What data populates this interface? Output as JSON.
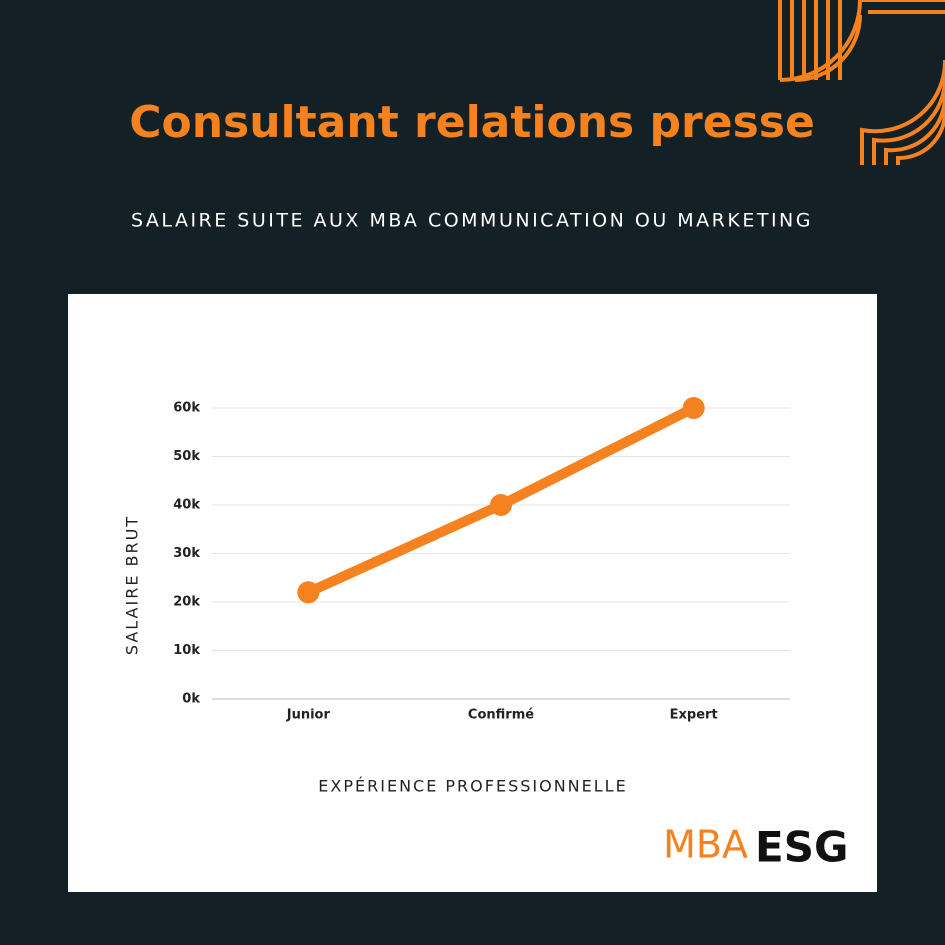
{
  "chart_data": {
    "type": "line",
    "title": "Consultant relations presse",
    "subtitle": "SALAIRE SUITE AUX MBA COMMUNICATION OU MARKETING",
    "y_label": "SALAIRE BRUT",
    "x_label": "EXPÉRIENCE PROFESSIONNELLE",
    "categories": [
      "Junior",
      "Confirmé",
      "Expert"
    ],
    "series": [
      {
        "color": "#f5821f",
        "values": [
          22000,
          40000,
          60000
        ]
      }
    ],
    "ylim": [
      0,
      60000
    ],
    "yticks": [
      {
        "value": 0,
        "label": "0k"
      },
      {
        "value": 10000,
        "label": "10k"
      },
      {
        "value": 20000,
        "label": "20k"
      },
      {
        "value": 30000,
        "label": "30k"
      },
      {
        "value": 40000,
        "label": "40k"
      },
      {
        "value": 50000,
        "label": "50k"
      },
      {
        "value": 60000,
        "label": "60k"
      }
    ],
    "grid": true
  },
  "logo": {
    "left": "MBA",
    "right": "ESG"
  }
}
